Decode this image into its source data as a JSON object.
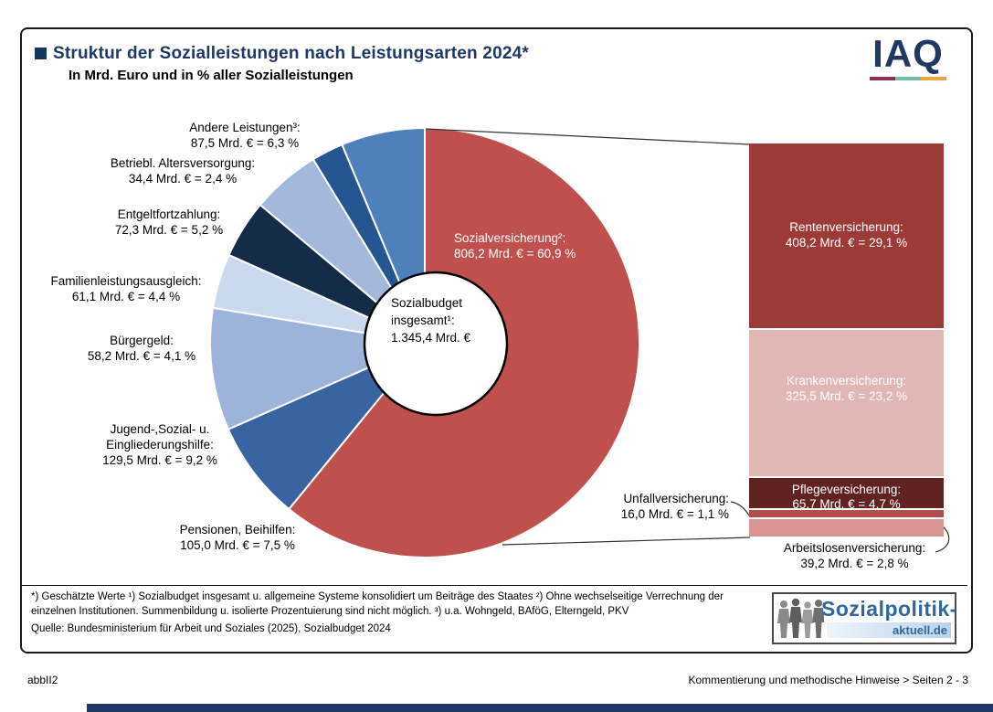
{
  "header": {
    "title": "Struktur der Sozialleistungen nach Leistungsarten 2024*",
    "subtitle": "In Mrd. Euro und in % aller Sozialleistungen",
    "title_color": "#1f3864",
    "iaq_logo_text": "IAQ",
    "iaq_underline_colors": [
      "#8e2c55",
      "#72c19e",
      "#eba440"
    ]
  },
  "chart_data": {
    "type": "pie",
    "title": "Struktur der Sozialleistungen nach Leistungsarten 2024*",
    "subtitle": "In Mrd. Euro und in % aller Sozialleistungen",
    "units": "Mrd. Euro und % aller Sozialleistungen",
    "center_label": "Sozialbudget\ninsgesamt¹:\n1.345,4 Mrd. €",
    "total": {
      "name": "Sozialbudget insgesamt¹",
      "value_mrd_eur": 1345.4
    },
    "donut": {
      "segments": [
        {
          "name": "Sozialversicherung",
          "label": "Sozialversicherung²:\n806,2 Mrd. € = 60,9 %",
          "value_mrd_eur": 806.2,
          "pct": 60.9,
          "color": "#c0504d"
        },
        {
          "name": "Pensionen, Beihilfen",
          "label": "Pensionen, Beihilfen:\n105,0 Mrd. € = 7,5 %",
          "value_mrd_eur": 105.0,
          "pct": 7.5,
          "color": "#3a63a2"
        },
        {
          "name": "Jugend-, Sozial- u. Eingliederungshilfe",
          "label": "Jugend-,Sozial- u.\nEingliederungshilfe:\n129,5 Mrd. € = 9,2 %",
          "value_mrd_eur": 129.5,
          "pct": 9.2,
          "color": "#9db3d9"
        },
        {
          "name": "Bürgergeld",
          "label": "Bürgergeld:\n58,2 Mrd. € = 4,1 %",
          "value_mrd_eur": 58.2,
          "pct": 4.1,
          "color": "#cbd9ee"
        },
        {
          "name": "Familienleistungsausgleich",
          "label": "Familienleistungsausgleich:\n61,1 Mrd. € = 4,4 %",
          "value_mrd_eur": 61.1,
          "pct": 4.4,
          "color": "#152c49"
        },
        {
          "name": "Entgeltfortzahlung",
          "label": "Entgeltfortzahlung:\n72,3 Mrd. € = 5,2 %",
          "value_mrd_eur": 72.3,
          "pct": 5.2,
          "color": "#a3b8da"
        },
        {
          "name": "Betriebl. Altersversorgung",
          "label": "Betriebl. Altersversorgung:\n34,4 Mrd. € = 2,4 %",
          "value_mrd_eur": 34.4,
          "pct": 2.4,
          "color": "#265691"
        },
        {
          "name": "Andere Leistungen",
          "label": "Andere Leistungen³:\n87,5 Mrd. € = 6,3 %",
          "value_mrd_eur": 87.5,
          "pct": 6.3,
          "color": "#4e80bc"
        }
      ]
    },
    "breakdown_bar": {
      "parent": "Sozialversicherung",
      "segments": [
        {
          "name": "Rentenversicherung",
          "label": "Rentenversicherung:\n408,2 Mrd. € = 29,1 %",
          "value_mrd_eur": 408.2,
          "pct": 29.1,
          "color": "#9c3a38"
        },
        {
          "name": "Krankenversicherung",
          "label": "Krankenversicherung:\n325,5 Mrd. € = 23,2 %",
          "value_mrd_eur": 325.5,
          "pct": 23.2,
          "color": "#e0b7b5"
        },
        {
          "name": "Pflegeversicherung",
          "label": "Pflegeversicherung:\n65,7 Mrd. € = 4,7 %",
          "value_mrd_eur": 65.7,
          "pct": 4.7,
          "color": "#612322"
        },
        {
          "name": "Unfallversicherung",
          "label": "Unfallversicherung:\n16,0 Mrd. € = 1,1 %",
          "value_mrd_eur": 16.0,
          "pct": 1.1,
          "color": "#b04f4c"
        },
        {
          "name": "Arbeitslosenversicherung",
          "label": "Arbeitslosenversicherung:\n39,2 Mrd. € = 2,8 %",
          "value_mrd_eur": 39.2,
          "pct": 2.8,
          "color": "#d99694"
        }
      ]
    }
  },
  "footnotes": {
    "text": "*) Geschätzte Werte ¹) Sozialbudget insgesamt u. allgemeine Systeme konsolidiert um Beiträge des Staates ²) Ohne wechselseitige Verrechnung der einzelnen Institutionen. Summenbildung u. isolierte Prozentuierung sind nicht möglich. ³) u.a. Wohngeld, BAföG, Elterngeld, PKV",
    "source": "Quelle: Bundesministerium für Arbeit und Soziales (2025), Sozialbudget 2024"
  },
  "spa_logo": {
    "main": "Sozialpolitik-",
    "sub": "aktuell.de"
  },
  "footer": {
    "figure_id": "abbII2",
    "right_text": "Kommentierung und methodische Hinweise > Seiten 2 - 3"
  }
}
